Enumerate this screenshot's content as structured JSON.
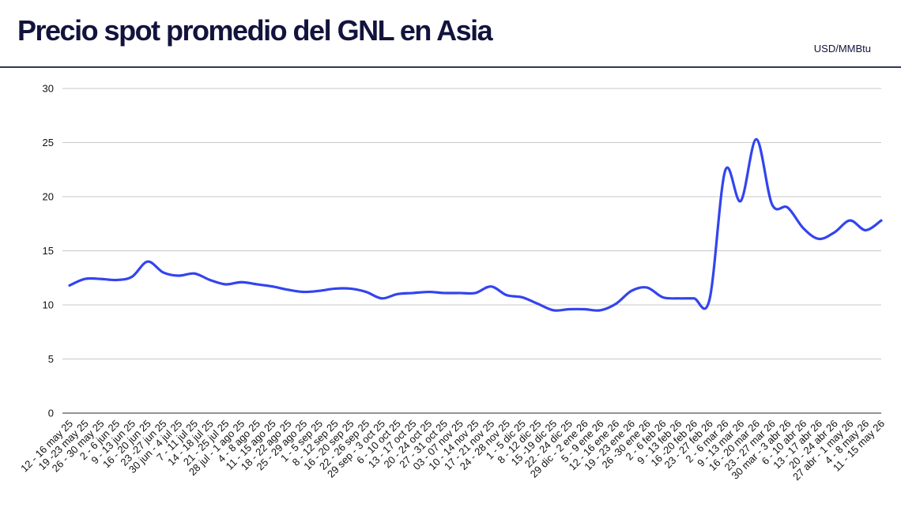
{
  "header": {
    "title": "Precio spot promedio del GNL en Asia",
    "unit": "USD/MMBtu"
  },
  "colors": {
    "line": "#3344ee",
    "grid": "#c8c8c8",
    "title": "#12143d"
  },
  "chart_data": {
    "type": "line",
    "title": "Precio spot promedio del GNL en Asia",
    "ylabel": "USD/MMBtu",
    "xlabel": "",
    "ylim": [
      0,
      30
    ],
    "yticks": [
      0,
      5,
      10,
      15,
      20,
      25,
      30
    ],
    "grid": true,
    "smooth": true,
    "categories": [
      "12 - 16 may 25",
      "19 -23 may 25",
      "26 - 30 may 25",
      "2 - 6 jun 25",
      "9 - 13 jun 25",
      "16 - 20 jun 25",
      "23 -27 jun 25",
      "30 jun - 4 jul 25",
      "7 - 11 jul 25",
      "14 - 18 jul 25",
      "21 - 25 jul 25",
      "28 jul - 1 ago 25",
      "4 - 8 ago 25",
      "11 - 15 ago 25",
      "18 - 22 ago 25",
      "25 - 29 ago 25",
      "1 - 5 sep 25",
      "8 - 12 sep 25",
      "16 - 20 sep 25",
      "22 - 26 sep 25",
      "29 sep - 3 oct 25",
      "6 - 10 oct 25",
      "13 - 17 oct 25",
      "20 - 24 oct 25",
      "27 - 31 oct 25",
      "03 - 07 nov 25",
      "10 - 14 nov 25",
      "17 - 21 nov 25",
      "24 - 28 nov 25",
      "1 - 5 dic 25",
      "8 - 12 dic 25",
      "15 -19 dic 25",
      "22 - 24 dic 25",
      "29 dic - 2 ene 26",
      "5 - 9 ene 26",
      "12 - 16 ene 26",
      "19 - 23 ene 26",
      "26 -30 ene 26",
      "2 - 6 feb 26",
      "9 - 13 feb 26",
      "16 -20 feb 26",
      "23 - 27 feb 26",
      "2 - 6 mar 26",
      "9 - 13 mar 26",
      "16 - 20 mar 26",
      "23 - 27 mar 26",
      "30 mar - 3 abr 26",
      "6 - 10 abr 26",
      "13 - 17 abr 26",
      "20 - 24 abr 26",
      "27 abr - 1 may 26",
      "4 - 8 may 26",
      "11 - 15 may 26"
    ],
    "series": [
      {
        "values": [
          11.8,
          12.4,
          12.4,
          12.3,
          12.6,
          14.0,
          13.0,
          12.7,
          12.9,
          12.3,
          11.9,
          12.1,
          11.9,
          11.7,
          11.4,
          11.2,
          11.3,
          11.5,
          11.5,
          11.2,
          10.6,
          11.0,
          11.1,
          11.2,
          11.1,
          11.1,
          11.1,
          11.7,
          10.9,
          10.7,
          10.1,
          9.5,
          9.6,
          9.6,
          9.5,
          10.1,
          11.3,
          11.6,
          10.7,
          10.6,
          10.6,
          10.5,
          22.4,
          19.6,
          25.3,
          19.3,
          19.0,
          17.1,
          16.1,
          16.7,
          17.8,
          16.9,
          17.8
        ]
      }
    ]
  }
}
